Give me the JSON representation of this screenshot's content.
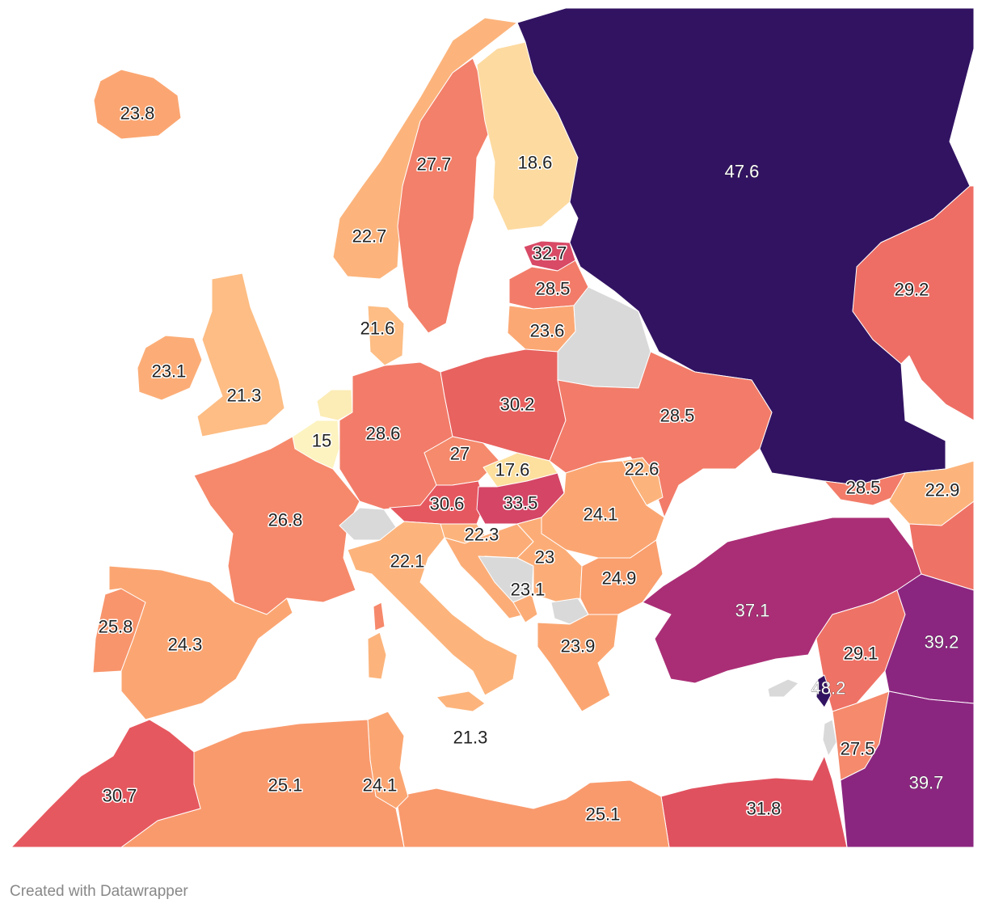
{
  "credit": "Created with Datawrapper",
  "colors": {
    "no_data": "#d9d9d9",
    "scale": [
      "#fcf3c0",
      "#fddaa0",
      "#fdba82",
      "#fa9f6e",
      "#f3806a",
      "#e85e63",
      "#cf4268",
      "#aa2e76",
      "#8b2680",
      "#321362"
    ]
  },
  "regions": [
    {
      "name": "iceland",
      "value": "23.8",
      "color": "#fba672"
    },
    {
      "name": "norway",
      "value": "22.7",
      "color": "#fcb47c"
    },
    {
      "name": "sweden",
      "value": "27.7",
      "color": "#f3806a"
    },
    {
      "name": "finland",
      "value": "18.6",
      "color": "#fddaa0"
    },
    {
      "name": "russia",
      "value": "47.6",
      "color": "#321362"
    },
    {
      "name": "estonia",
      "value": "32.7",
      "color": "#d84a66"
    },
    {
      "name": "latvia",
      "value": "28.5",
      "color": "#f27c69"
    },
    {
      "name": "lithuania",
      "value": "23.6",
      "color": "#fca874"
    },
    {
      "name": "denmark",
      "value": "21.6",
      "color": "#fdbd84"
    },
    {
      "name": "ireland",
      "value": "23.1",
      "color": "#fcad77"
    },
    {
      "name": "uk",
      "value": "21.3",
      "color": "#fdbd84"
    },
    {
      "name": "netherlands",
      "value": "15",
      "color": "#fcecb6"
    },
    {
      "name": "belgium",
      "value": "15",
      "color": "#fcf3c0"
    },
    {
      "name": "germany",
      "value": "28.6",
      "color": "#f27c69"
    },
    {
      "name": "poland",
      "value": "30.2",
      "color": "#e8625f"
    },
    {
      "name": "belarus",
      "value": "",
      "color": "#d9d9d9"
    },
    {
      "name": "ukraine",
      "value": "28.5",
      "color": "#f27c69"
    },
    {
      "name": "czechia",
      "value": "27",
      "color": "#f58a6c"
    },
    {
      "name": "slovakia",
      "value": "17.6",
      "color": "#fddf9e"
    },
    {
      "name": "austria",
      "value": "30.6",
      "color": "#e6585f"
    },
    {
      "name": "hungary",
      "value": "33.5",
      "color": "#d44566"
    },
    {
      "name": "france",
      "value": "26.8",
      "color": "#f6896b"
    },
    {
      "name": "switzerland",
      "value": "",
      "color": "#d9d9d9"
    },
    {
      "name": "moldova",
      "value": "22.6",
      "color": "#fcb47c"
    },
    {
      "name": "romania",
      "value": "24.1",
      "color": "#fba672"
    },
    {
      "name": "slovenia",
      "value": "22.3",
      "color": "#fcb47c"
    },
    {
      "name": "croatia",
      "value": "23",
      "color": "#fcad77"
    },
    {
      "name": "bosnia",
      "value": "",
      "color": "#d9d9d9"
    },
    {
      "name": "serbia",
      "value": "23",
      "color": "#fcad77"
    },
    {
      "name": "montenegro",
      "value": "23.1",
      "color": "#fcad77"
    },
    {
      "name": "kosovo",
      "value": "",
      "color": "#d9d9d9"
    },
    {
      "name": "bulgaria",
      "value": "24.9",
      "color": "#fa9f6e"
    },
    {
      "name": "italy",
      "value": "22.1",
      "color": "#fcb47c"
    },
    {
      "name": "portugal",
      "value": "25.8",
      "color": "#f8956c"
    },
    {
      "name": "spain",
      "value": "24.3",
      "color": "#fba672"
    },
    {
      "name": "greece",
      "value": "23.9",
      "color": "#fba672"
    },
    {
      "name": "turkey",
      "value": "37.1",
      "color": "#aa2e76"
    },
    {
      "name": "georgia",
      "value": "28.5",
      "color": "#f27c69"
    },
    {
      "name": "armenia-azerbaijan",
      "value": "22.9",
      "color": "#fcb47c"
    },
    {
      "name": "kazakhstan",
      "value": "29.2",
      "color": "#ee6e65"
    },
    {
      "name": "syria",
      "value": "29.1",
      "color": "#ef7266"
    },
    {
      "name": "iraq",
      "value": "39.2",
      "color": "#8b2680"
    },
    {
      "name": "lebanon",
      "value": "48.2",
      "color": "#321362"
    },
    {
      "name": "cyprus",
      "value": "",
      "color": "#d9d9d9"
    },
    {
      "name": "jordan",
      "value": "27.5",
      "color": "#f58a6c"
    },
    {
      "name": "saudi-arabia",
      "value": "39.7",
      "color": "#8b2680"
    },
    {
      "name": "egypt",
      "value": "31.8",
      "color": "#e0515f"
    },
    {
      "name": "libya",
      "value": "25.1",
      "color": "#f99a6d"
    },
    {
      "name": "mediterranean-label",
      "value": "21.3",
      "color": ""
    },
    {
      "name": "tunisia",
      "value": "24.1",
      "color": "#fba672"
    },
    {
      "name": "algeria",
      "value": "25.1",
      "color": "#f99a6d"
    },
    {
      "name": "morocco",
      "value": "30.7",
      "color": "#e6585f"
    }
  ]
}
